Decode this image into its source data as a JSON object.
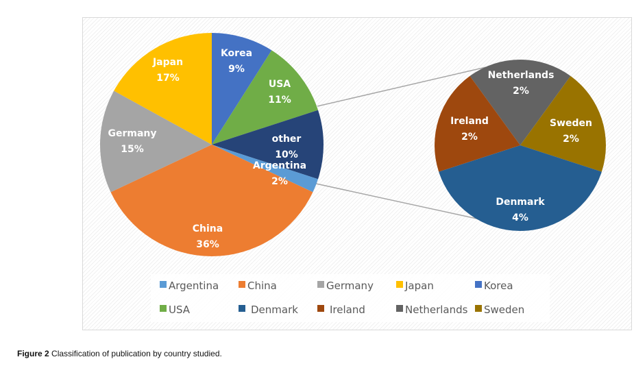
{
  "chart_data": {
    "type": "pie",
    "subtype": "pie-of-pie",
    "main_pie": {
      "slices": [
        {
          "label": "Korea",
          "value": 9,
          "display": "9%",
          "color": "#4472C4"
        },
        {
          "label": "USA",
          "value": 11,
          "display": "11%",
          "color": "#70AD47"
        },
        {
          "label": "other",
          "value": 10,
          "display": "10%",
          "color": "#264478"
        },
        {
          "label": "Argentina",
          "value": 2,
          "display": "2%",
          "color": "#5B9BD5"
        },
        {
          "label": "China",
          "value": 36,
          "display": "36%",
          "color": "#ED7D31"
        },
        {
          "label": "Germany",
          "value": 15,
          "display": "15%",
          "color": "#A5A5A5"
        },
        {
          "label": "Japan",
          "value": 17,
          "display": "17%",
          "color": "#FFC000"
        }
      ]
    },
    "secondary_pie": {
      "slices": [
        {
          "label": "Netherlands",
          "value": 2,
          "display": "2%",
          "color": "#636363"
        },
        {
          "label": "Sweden",
          "value": 2,
          "display": "2%",
          "color": "#997300"
        },
        {
          "label": "Denmark",
          "value": 4,
          "display": "4%",
          "color": "#255E91"
        },
        {
          "label": "Ireland",
          "value": 2,
          "display": "2%",
          "color": "#9E480E"
        }
      ]
    },
    "legend": {
      "placement": "bottom",
      "entries": [
        {
          "label": "Argentina",
          "color": "#5B9BD5"
        },
        {
          "label": "China",
          "color": "#ED7D31"
        },
        {
          "label": "Germany",
          "color": "#A5A5A5"
        },
        {
          "label": "Japan",
          "color": "#FFC000"
        },
        {
          "label": "Korea",
          "color": "#4472C4"
        },
        {
          "label": "USA",
          "color": "#70AD47"
        },
        {
          "label": "Denmark",
          "color": "#255E91"
        },
        {
          "label": "Ireland",
          "color": "#9E480E"
        },
        {
          "label": "Netherlands",
          "color": "#636363"
        },
        {
          "label": "Sweden",
          "color": "#997300"
        }
      ]
    }
  },
  "caption": {
    "figure_label": "Figure 2",
    "text": "Classification of publication by country studied."
  }
}
